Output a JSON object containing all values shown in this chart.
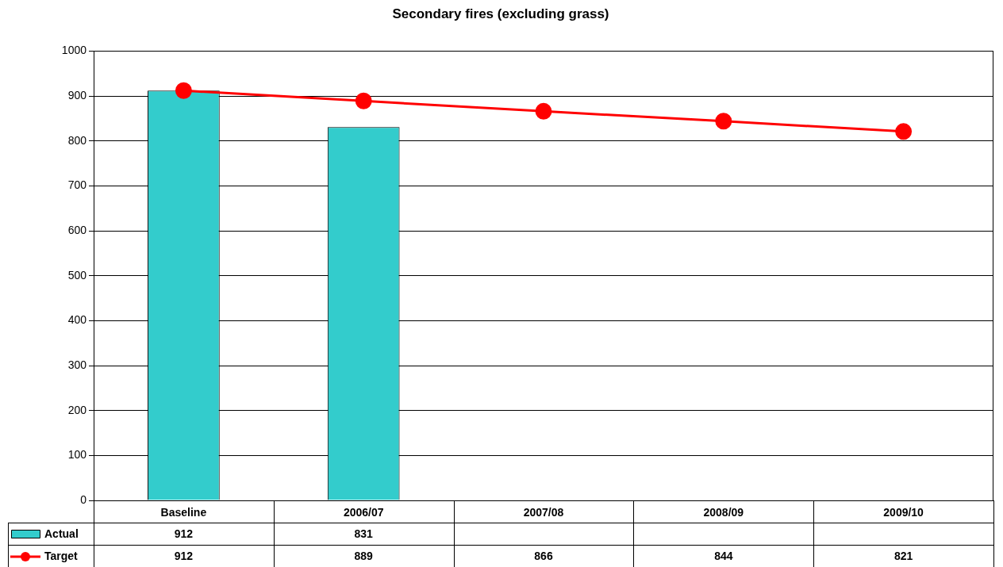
{
  "chart_data": {
    "type": "bar",
    "title": "Secondary fires (excluding grass)",
    "categories": [
      "Baseline",
      "2006/07",
      "2007/08",
      "2008/09",
      "2009/10"
    ],
    "series": [
      {
        "name": "Actual",
        "color": "#33cccc",
        "values": [
          912,
          831,
          null,
          null,
          null
        ]
      },
      {
        "name": "Target",
        "type": "line",
        "color": "#ff0000",
        "values": [
          912,
          889,
          866,
          844,
          821
        ]
      }
    ],
    "ylim": [
      0,
      1000
    ],
    "yticks": [
      0,
      100,
      200,
      300,
      400,
      500,
      600,
      700,
      800,
      900,
      1000
    ],
    "grid": "y",
    "legend": "bottom left",
    "marker": "circle",
    "line_style": "solid",
    "data_labels": true
  }
}
